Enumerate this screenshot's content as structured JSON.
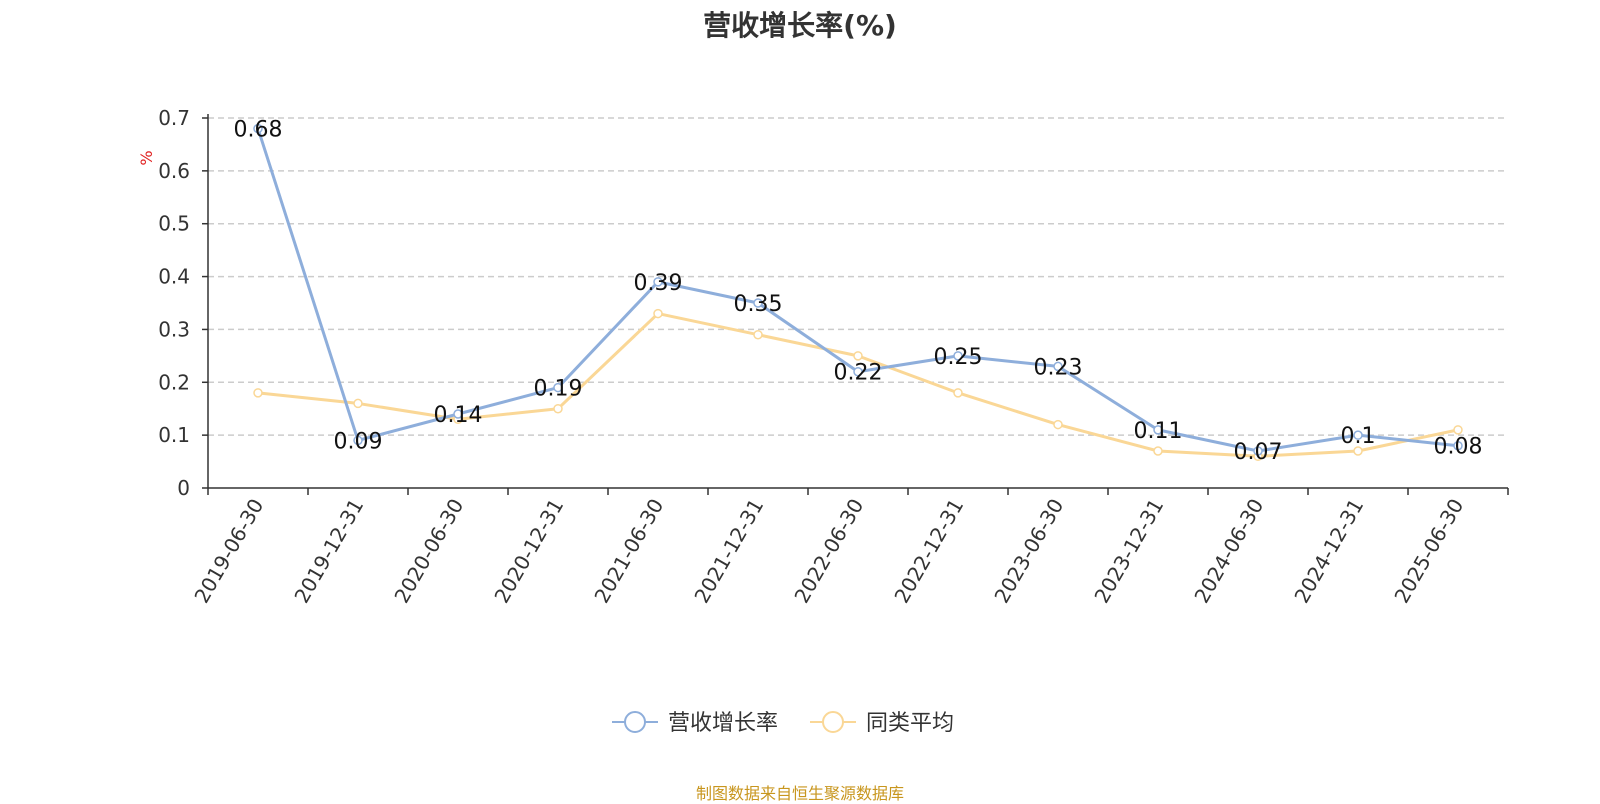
{
  "title": "营收增长率(%)",
  "source": "制图数据来自恒生聚源数据库",
  "chart_data": {
    "type": "line",
    "title": "营收增长率(%)",
    "ylabel": "%",
    "xlabel": "",
    "ylim": [
      0,
      0.7
    ],
    "yticks": [
      "0",
      "0.1",
      "0.2",
      "0.3",
      "0.4",
      "0.5",
      "0.6",
      "0.7"
    ],
    "categories": [
      "2019-06-30",
      "2019-12-31",
      "2020-06-30",
      "2020-12-31",
      "2021-06-30",
      "2021-12-31",
      "2022-06-30",
      "2022-12-31",
      "2023-06-30",
      "2023-12-31",
      "2024-06-30",
      "2024-12-31",
      "2025-06-30"
    ],
    "grid": "dashed horizontal",
    "legend_position": "bottom-center",
    "series": [
      {
        "name": "营收增长率",
        "color": "#8eaedb",
        "values": [
          0.68,
          0.09,
          0.14,
          0.19,
          0.39,
          0.35,
          0.22,
          0.25,
          0.23,
          0.11,
          0.07,
          0.1,
          0.08
        ],
        "labels": [
          "0.68",
          "0.09",
          "0.14",
          "0.19",
          "0.39",
          "0.35",
          "0.22",
          "0.25",
          "0.23",
          "0.11",
          "0.07",
          "0.1",
          "0.08"
        ]
      },
      {
        "name": "同类平均",
        "color": "#fad796",
        "values": [
          0.18,
          0.16,
          0.13,
          0.15,
          0.33,
          0.29,
          0.25,
          0.18,
          0.12,
          0.07,
          0.06,
          0.07,
          0.11
        ]
      }
    ]
  }
}
